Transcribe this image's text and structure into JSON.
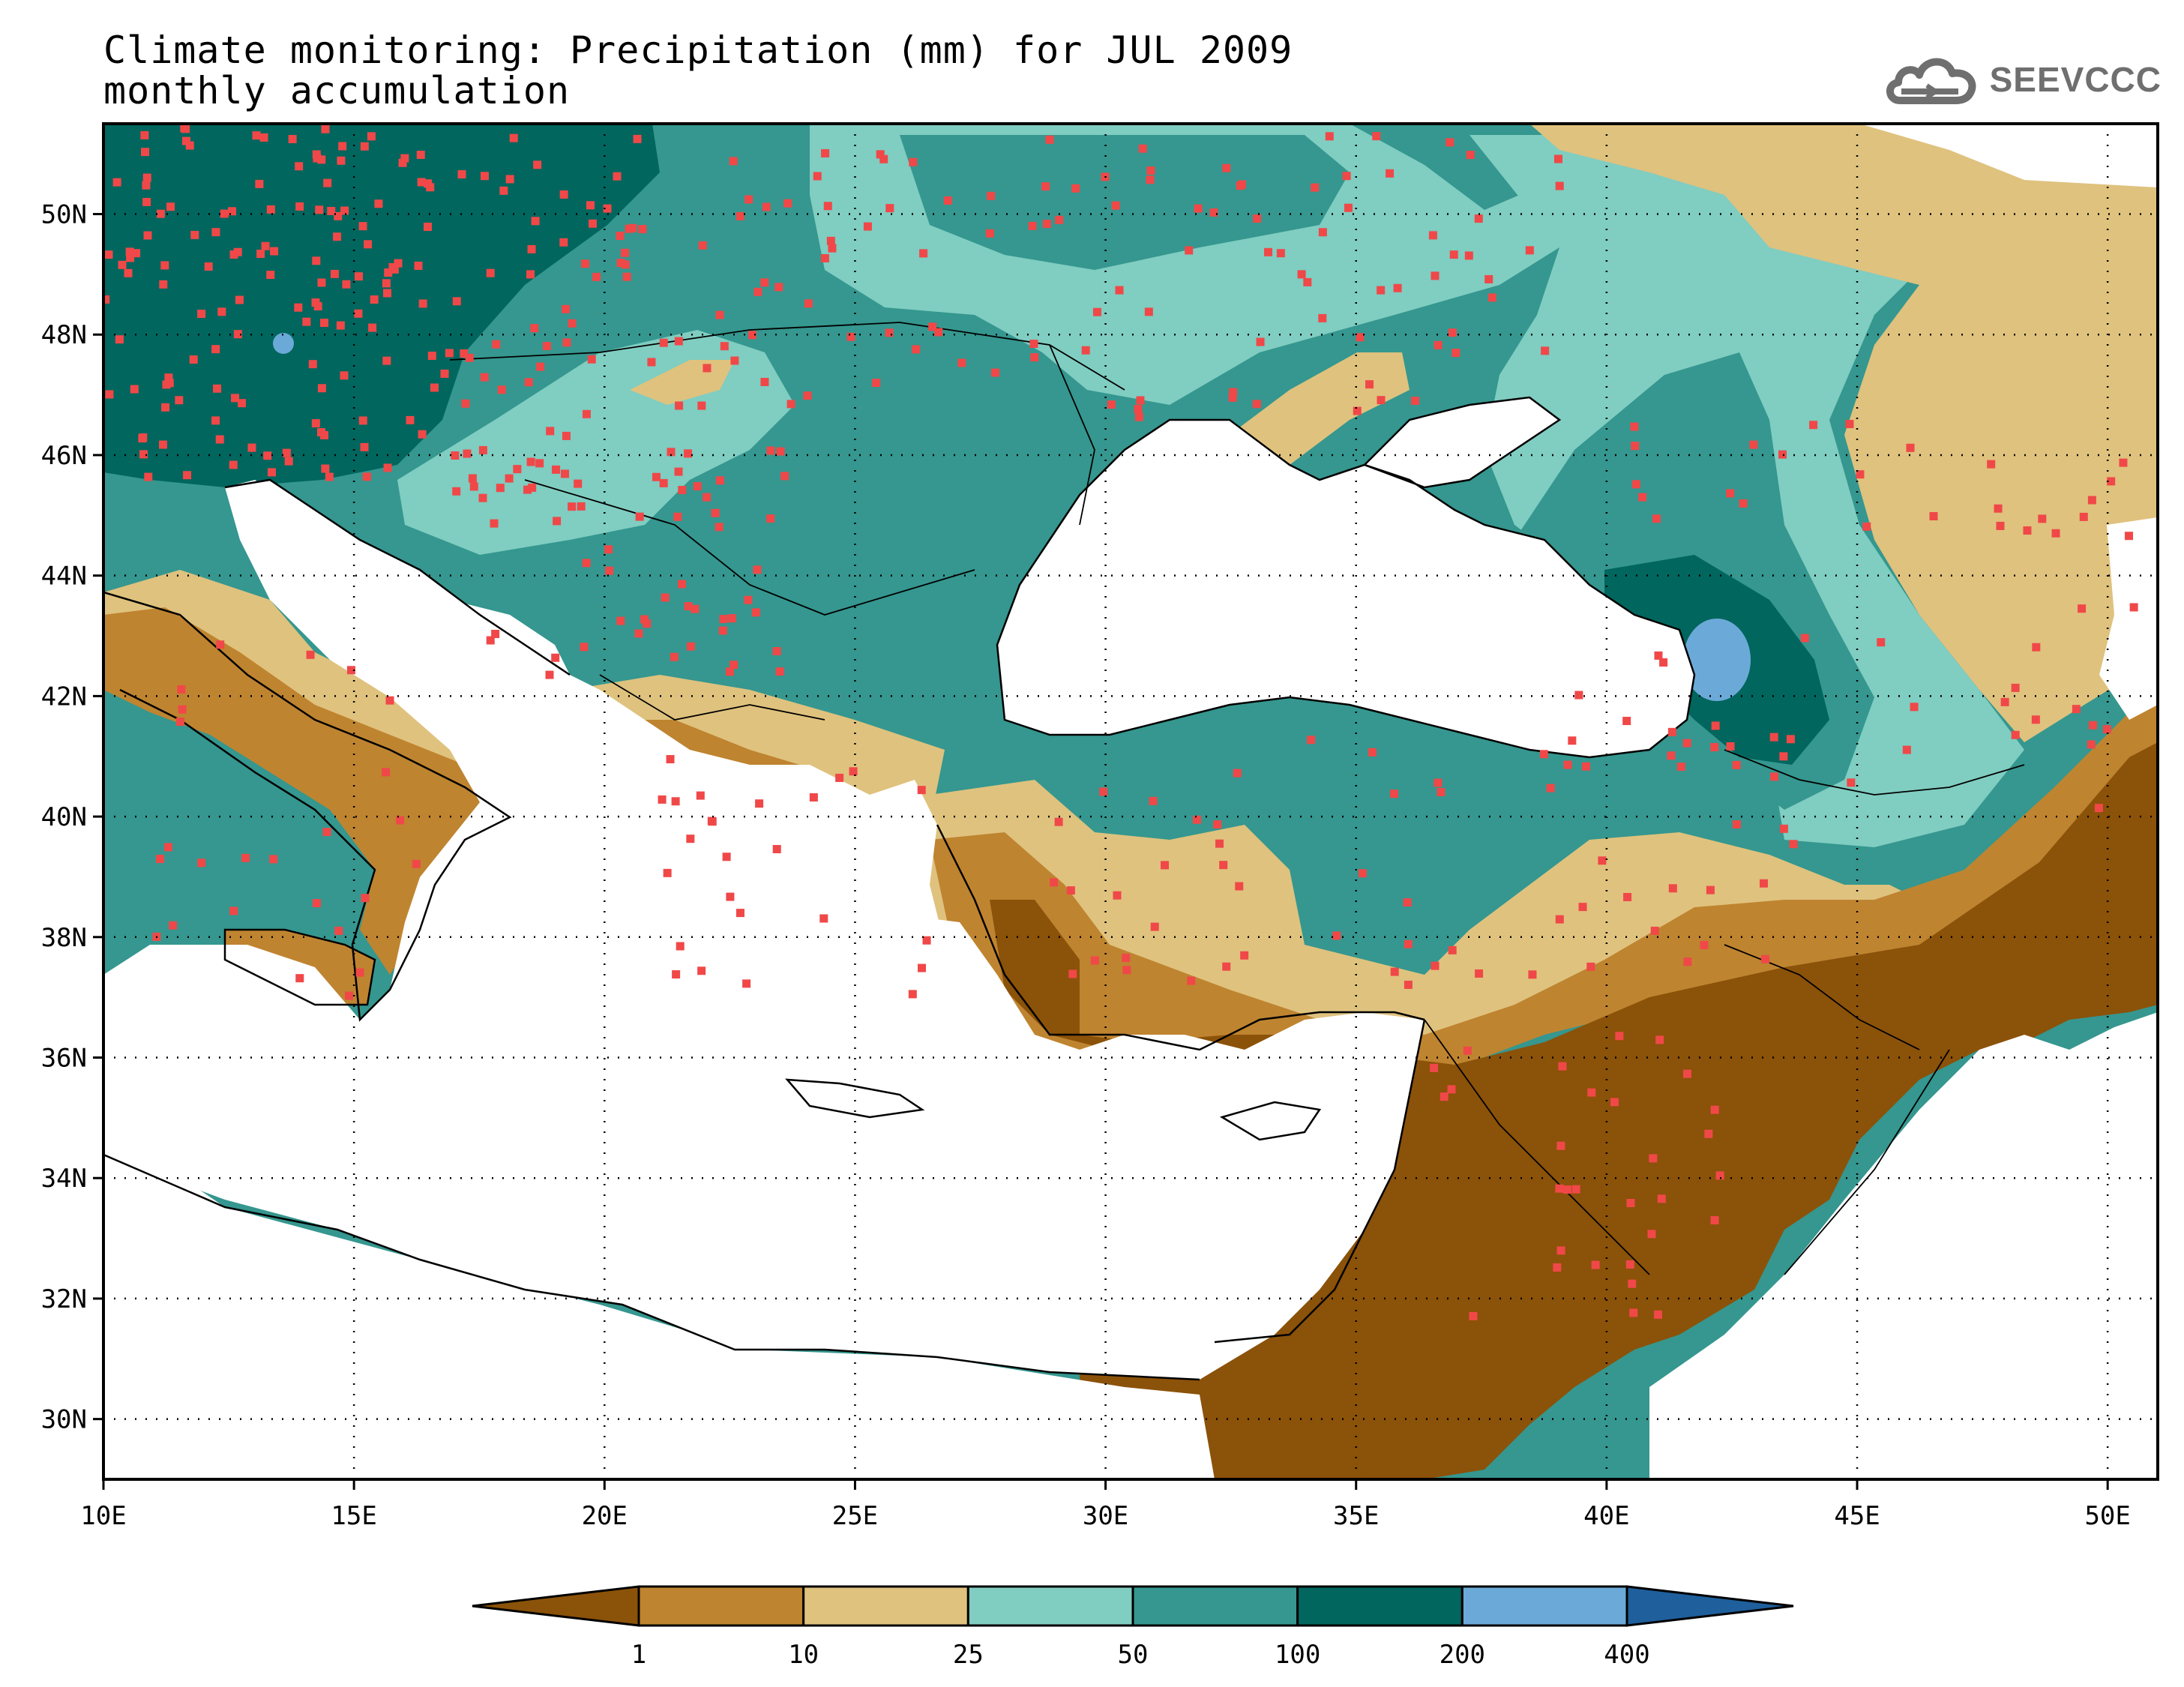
{
  "title": {
    "line1": "Climate monitoring: Precipitation (mm) for JUL 2009",
    "line2": "monthly accumulation"
  },
  "logo": {
    "text": "SEEVCCC",
    "icon": "cloud-icon"
  },
  "map": {
    "lon_range": [
      10,
      51
    ],
    "lat_range": [
      29,
      51.5
    ],
    "x_ticks": [
      {
        "value": 10,
        "label": "10E"
      },
      {
        "value": 15,
        "label": "15E"
      },
      {
        "value": 20,
        "label": "20E"
      },
      {
        "value": 25,
        "label": "25E"
      },
      {
        "value": 30,
        "label": "30E"
      },
      {
        "value": 35,
        "label": "35E"
      },
      {
        "value": 40,
        "label": "40E"
      },
      {
        "value": 45,
        "label": "45E"
      },
      {
        "value": 50,
        "label": "50E"
      }
    ],
    "y_ticks": [
      {
        "value": 30,
        "label": "30N"
      },
      {
        "value": 32,
        "label": "32N"
      },
      {
        "value": 34,
        "label": "34N"
      },
      {
        "value": 36,
        "label": "36N"
      },
      {
        "value": 38,
        "label": "38N"
      },
      {
        "value": 40,
        "label": "40N"
      },
      {
        "value": 42,
        "label": "42N"
      },
      {
        "value": 44,
        "label": "44N"
      },
      {
        "value": 46,
        "label": "46N"
      },
      {
        "value": 48,
        "label": "48N"
      },
      {
        "value": 50,
        "label": "50N"
      }
    ],
    "grid": "dotted"
  },
  "legend": {
    "colors": [
      "#8b5209",
      "#bf8430",
      "#dfc27e",
      "#80cdc1",
      "#35978f",
      "#01665e",
      "#6baad8",
      "#1e5f9c"
    ],
    "labels": [
      "1",
      "10",
      "25",
      "50",
      "100",
      "200",
      "400"
    ]
  },
  "colors": {
    "station": "#f04848",
    "sea": "#ffffff"
  }
}
